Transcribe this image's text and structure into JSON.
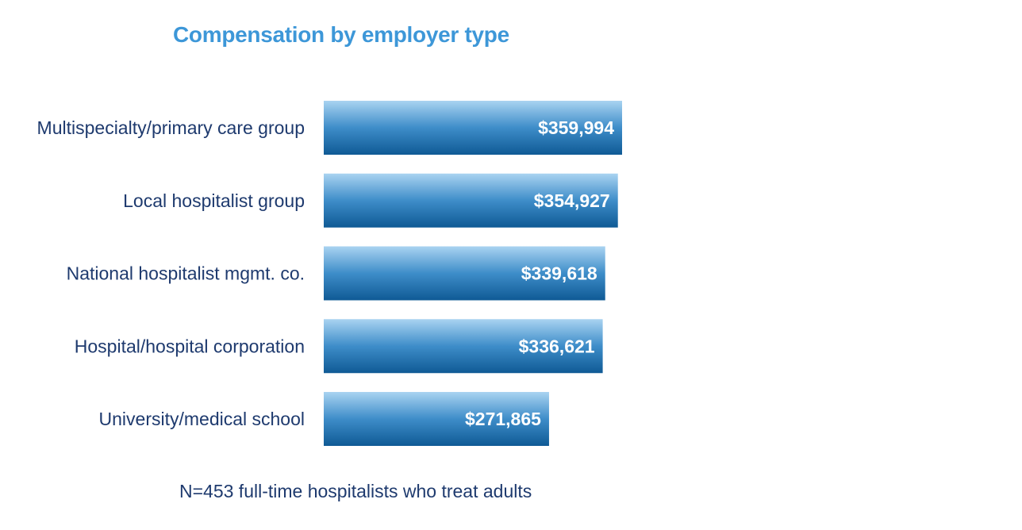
{
  "chart_data": {
    "type": "bar",
    "orientation": "horizontal",
    "title": "Compensation by employer type",
    "categories": [
      "Multispecialty/primary care group",
      "Local hospitalist group",
      "National hospitalist mgmt. co.",
      "Hospital/hospital corporation",
      "University/medical school"
    ],
    "values": [
      359994,
      354927,
      339618,
      336621,
      271865
    ],
    "value_labels": [
      "$359,994",
      "$354,927",
      "$339,618",
      "$336,621",
      "$271,865"
    ],
    "note": "N=453 full-time hospitalists who treat adults",
    "xlim": [
      0,
      359994
    ],
    "grid": false,
    "legend": "none",
    "colors": {
      "title": "#3d97d8",
      "label": "#1e3a6e",
      "bar_top": "#a9d3f1",
      "bar_mid": "#3e8dc9",
      "bar_bottom": "#0f5a95",
      "value_text": "#ffffff"
    }
  }
}
